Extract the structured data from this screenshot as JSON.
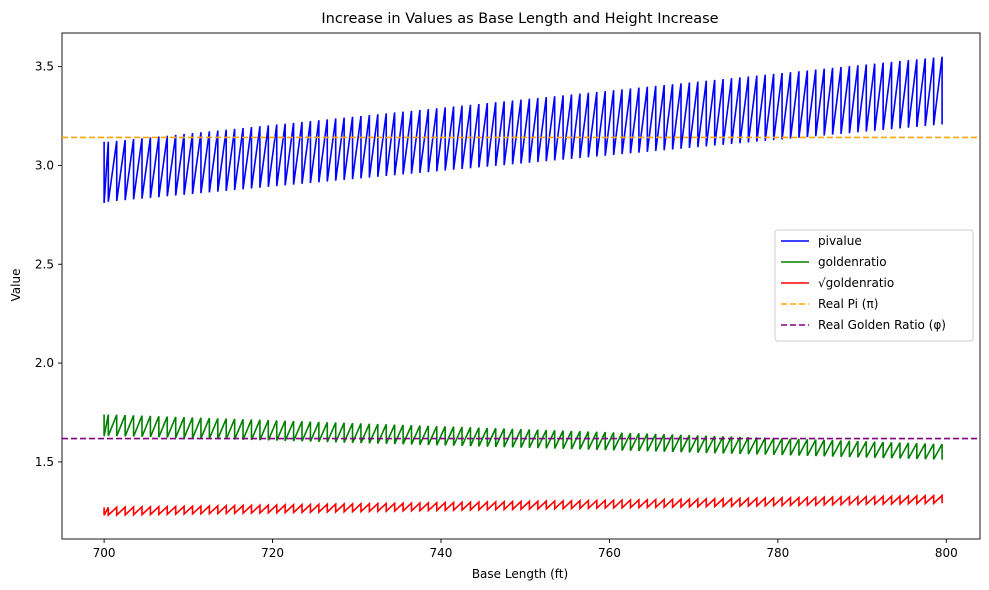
{
  "chart_data": {
    "type": "line",
    "title": "Increase in Values as Base Length and Height Increase",
    "xlabel": "Base Length (ft)",
    "ylabel": "Value",
    "xlim": [
      695,
      804
    ],
    "ylim": [
      1.11,
      3.67
    ],
    "xticks": [
      700,
      720,
      740,
      760,
      780,
      800
    ],
    "yticks": [
      1.5,
      2.0,
      2.5,
      3.0,
      3.5
    ],
    "xtick_labels": [
      "700",
      "720",
      "740",
      "760",
      "780",
      "800"
    ],
    "ytick_labels": [
      "1.5",
      "2.0",
      "2.5",
      "3.0",
      "3.5"
    ],
    "grid": false,
    "legend_position": "center-right",
    "base_length_start": 700,
    "base_length_end": 799,
    "series": [
      {
        "name": "pivalue",
        "color": "#0000ff",
        "style": "solid",
        "pattern": "sawtooth",
        "low_start": 2.81,
        "low_end": 3.2,
        "high_start": 3.12,
        "high_end": 3.55
      },
      {
        "name": "goldenratio",
        "color": "#008000",
        "style": "solid",
        "pattern": "sawtooth",
        "low_start": 1.63,
        "low_end": 1.51,
        "high_start": 1.74,
        "high_end": 1.59
      },
      {
        "name": "√goldenratio",
        "color": "#ff0000",
        "style": "solid",
        "pattern": "sawtooth",
        "low_start": 1.23,
        "low_end": 1.29,
        "high_start": 1.27,
        "high_end": 1.33
      },
      {
        "name": "Real Pi (π)",
        "color": "#ffa500",
        "style": "dashed",
        "pattern": "hline",
        "value": 3.1416
      },
      {
        "name": "Real Golden Ratio (φ)",
        "color": "#800080",
        "style": "dashed",
        "pattern": "hline",
        "value": 1.618
      }
    ]
  }
}
